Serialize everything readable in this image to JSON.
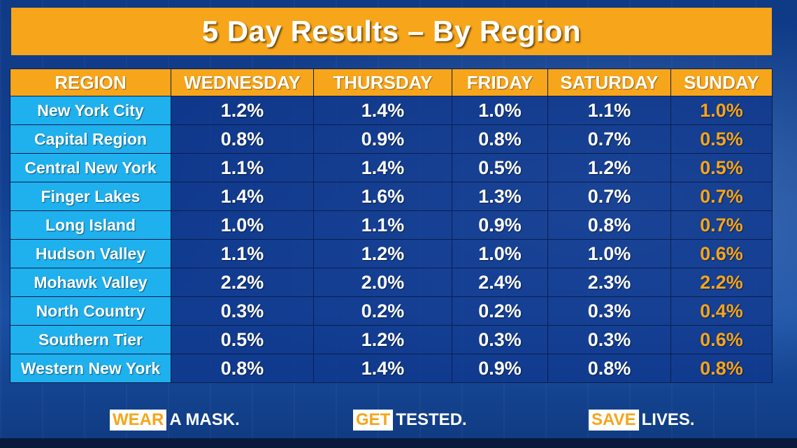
{
  "title": "5 Day Results – By Region",
  "table": {
    "headers": [
      "REGION",
      "WEDNESDAY",
      "THURSDAY",
      "FRIDAY",
      "SATURDAY",
      "SUNDAY"
    ],
    "rows": [
      [
        "New York City",
        "1.2%",
        "1.4%",
        "1.0%",
        "1.1%",
        "1.0%"
      ],
      [
        "Capital Region",
        "0.8%",
        "0.9%",
        "0.8%",
        "0.7%",
        "0.5%"
      ],
      [
        "Central New York",
        "1.1%",
        "1.4%",
        "0.5%",
        "1.2%",
        "0.5%"
      ],
      [
        "Finger Lakes",
        "1.4%",
        "1.6%",
        "1.3%",
        "0.7%",
        "0.7%"
      ],
      [
        "Long Island",
        "1.0%",
        "1.1%",
        "0.9%",
        "0.8%",
        "0.7%"
      ],
      [
        "Hudson Valley",
        "1.1%",
        "1.2%",
        "1.0%",
        "1.0%",
        "0.6%"
      ],
      [
        "Mohawk Valley",
        "2.2%",
        "2.0%",
        "2.4%",
        "2.3%",
        "2.2%"
      ],
      [
        "North Country",
        "0.3%",
        "0.2%",
        "0.2%",
        "0.3%",
        "0.4%"
      ],
      [
        "Southern Tier",
        "0.5%",
        "1.2%",
        "0.3%",
        "0.3%",
        "0.6%"
      ],
      [
        "Western New York",
        "0.8%",
        "1.4%",
        "0.9%",
        "0.8%",
        "0.8%"
      ]
    ]
  },
  "slogans": [
    {
      "highlight": "WEAR",
      "rest": "A MASK."
    },
    {
      "highlight": "GET",
      "rest": "TESTED."
    },
    {
      "highlight": "SAVE",
      "rest": "LIVES."
    }
  ],
  "colors": {
    "accent": "#f7a51a",
    "region_cell": "#1fb0ee",
    "cell_background": "#0f378c"
  }
}
